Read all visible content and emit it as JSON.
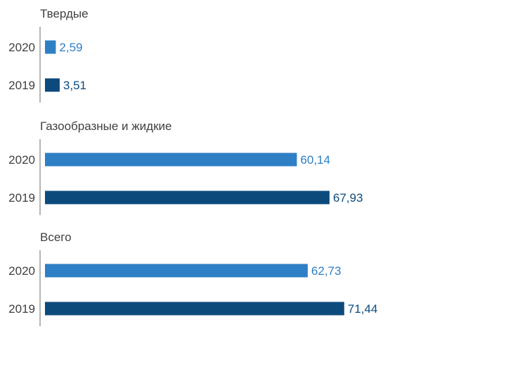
{
  "colors": {
    "series_2020": "#2e7fc4",
    "series_2019": "#0c4a7c",
    "axis": "#b5b5b5",
    "text": "#3f3f3f"
  },
  "chart_data": {
    "type": "bar",
    "orientation": "horizontal",
    "decimal_separator": ",",
    "groups": [
      {
        "name": "Твердые",
        "bars": [
          {
            "year": "2020",
            "value": 2.59,
            "label": "2,59"
          },
          {
            "year": "2019",
            "value": 3.51,
            "label": "3,51"
          }
        ]
      },
      {
        "name": "Газообразные и жидкие",
        "bars": [
          {
            "year": "2020",
            "value": 60.14,
            "label": "60,14"
          },
          {
            "year": "2019",
            "value": 67.93,
            "label": "67,93"
          }
        ]
      },
      {
        "name": "Всего",
        "bars": [
          {
            "year": "2020",
            "value": 62.73,
            "label": "62,73"
          },
          {
            "year": "2019",
            "value": 71.44,
            "label": "71,44"
          }
        ]
      }
    ]
  }
}
